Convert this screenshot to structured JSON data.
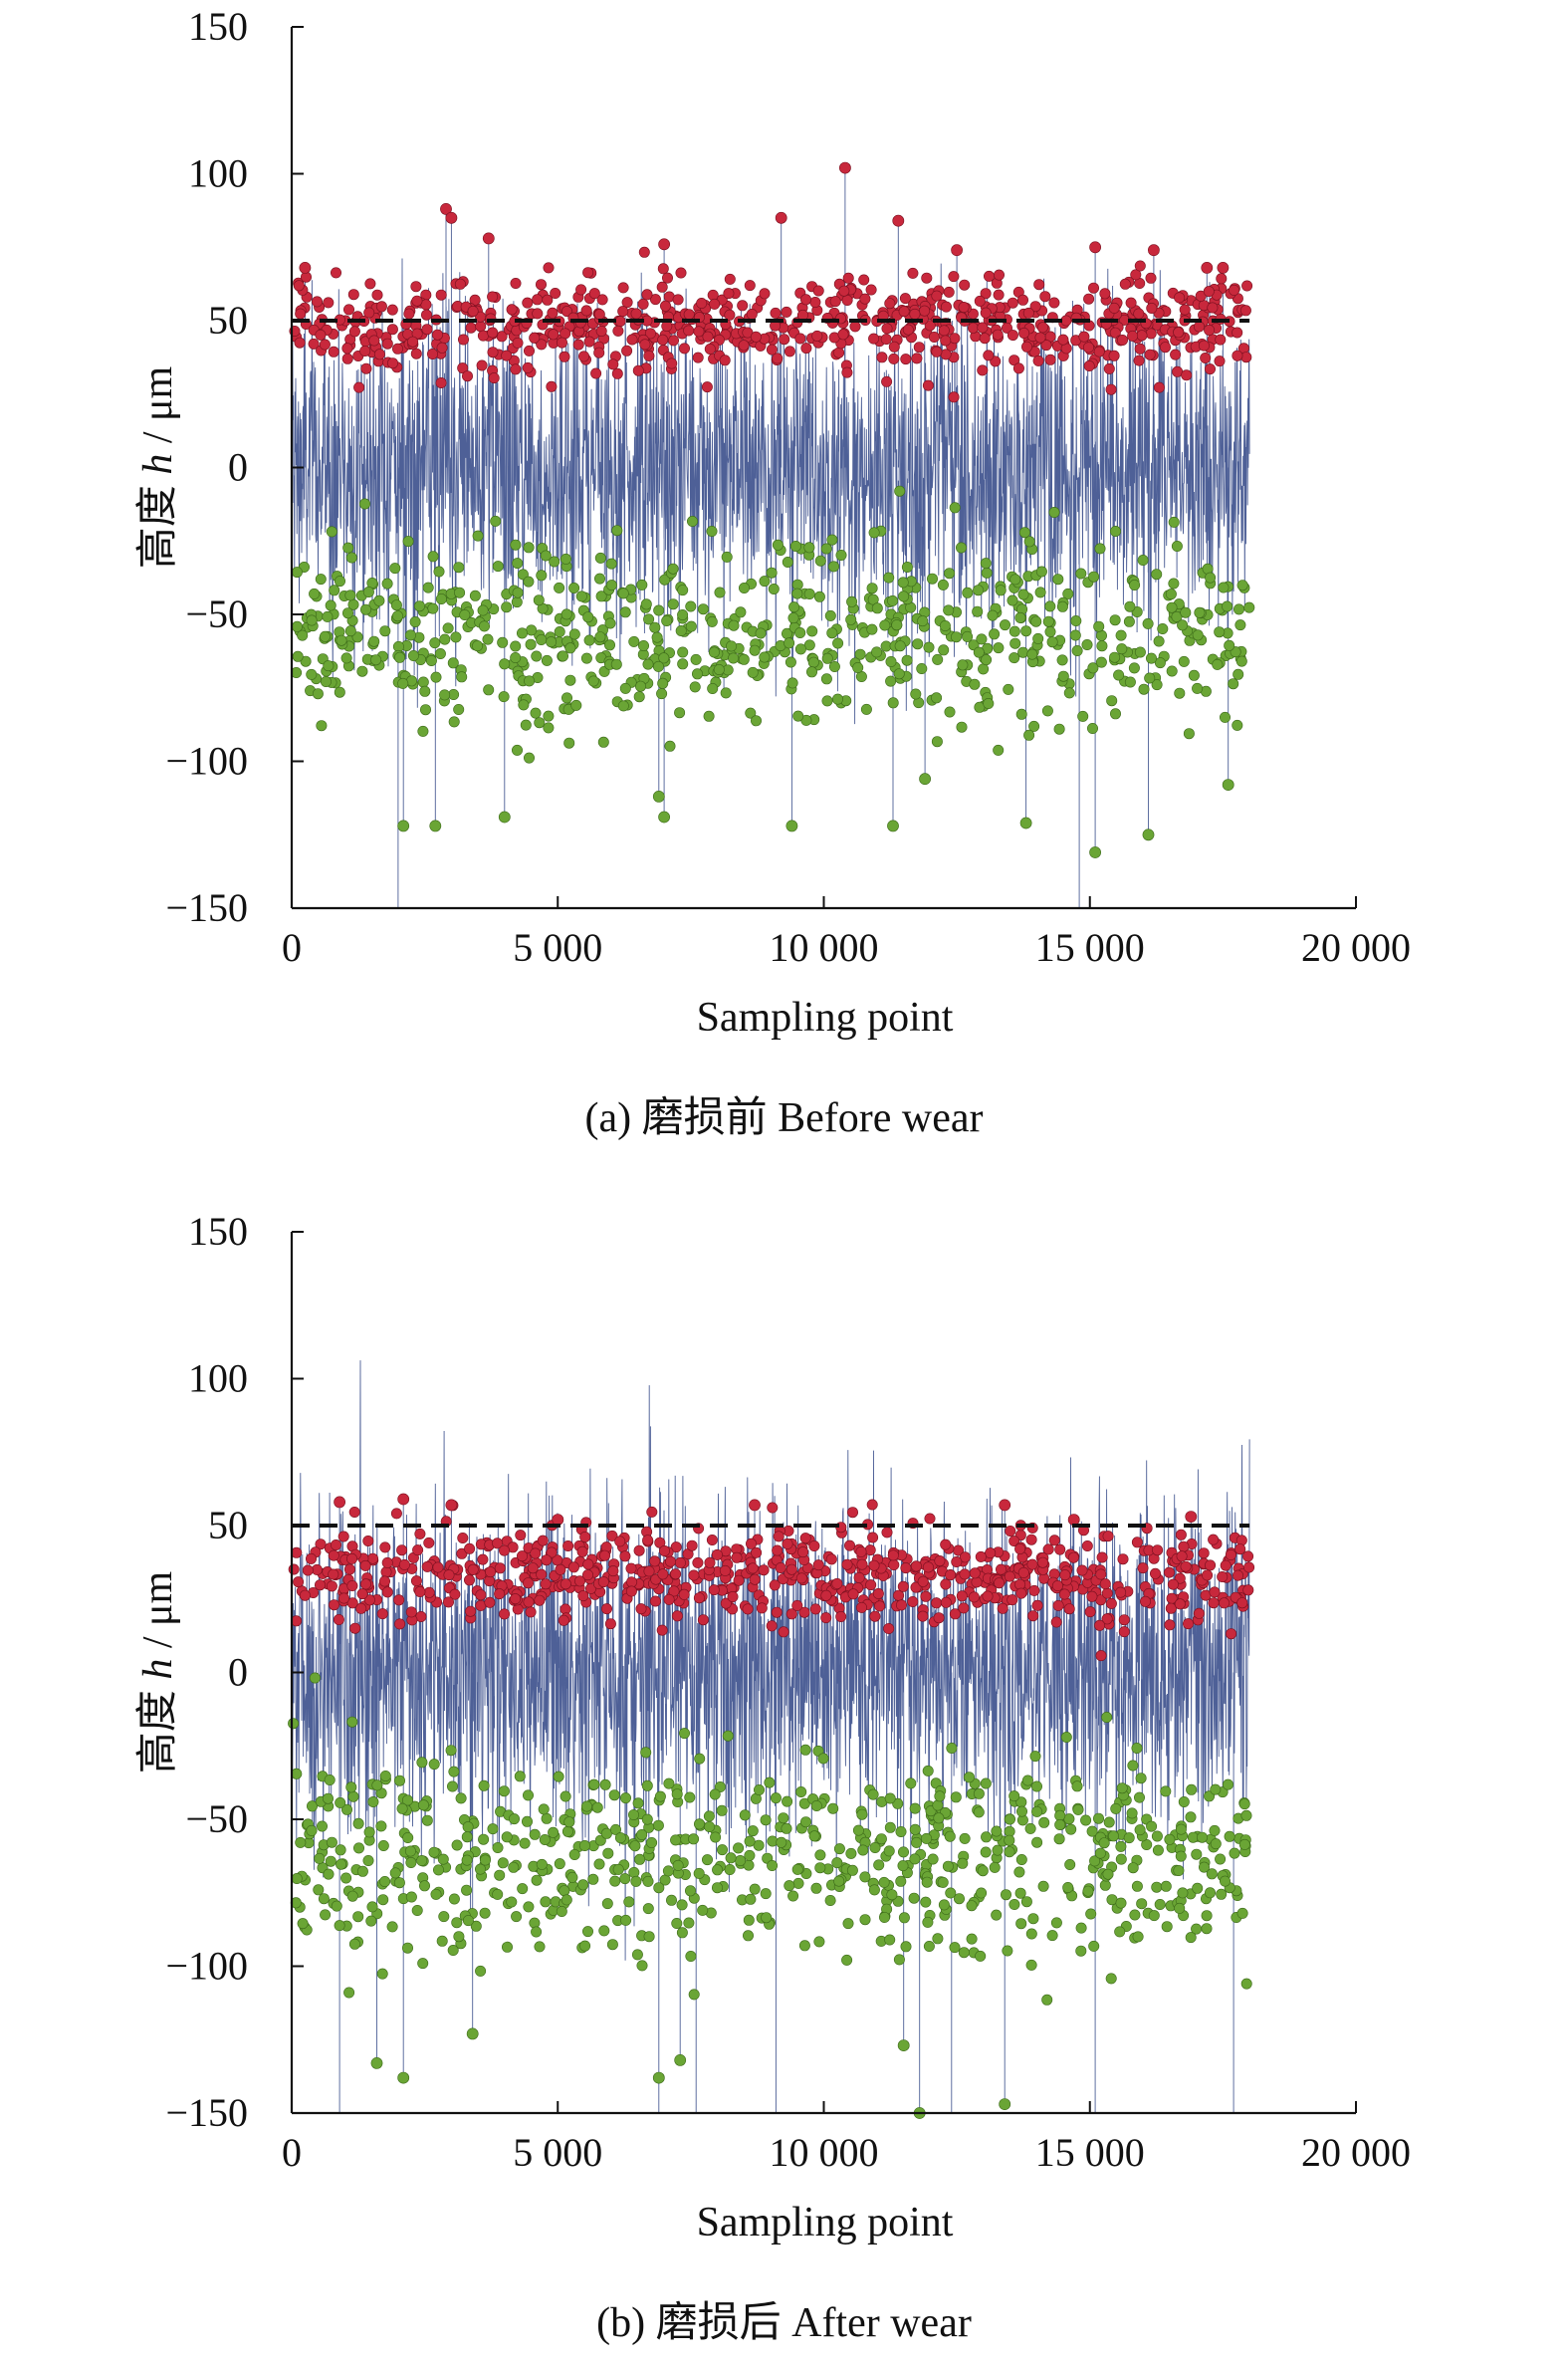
{
  "colors": {
    "line": "#3b4f8c",
    "peak": "#c8283c",
    "valley": "#6aa535",
    "threshold": "#111111",
    "axis": "#111111"
  },
  "chart_data": [
    {
      "type": "line",
      "caption": "(a) 磨损前 Before wear",
      "xlabel": "Sampling point",
      "ylabel_cn": "高度",
      "ylabel_var": "h",
      "ylabel_unit": " / μm",
      "xlim": [
        0,
        20000
      ],
      "ylim": [
        -150,
        150
      ],
      "xticks": [
        0,
        5000,
        10000,
        15000,
        20000
      ],
      "xtick_labels": [
        "0",
        "5 000",
        "10 000",
        "15 000",
        "20 000"
      ],
      "yticks": [
        -150,
        -100,
        -50,
        0,
        50,
        100,
        150
      ],
      "ytick_labels": [
        "−150",
        "−100",
        "−50",
        "0",
        "50",
        "100",
        "150"
      ],
      "threshold": 50,
      "n_points": 18000,
      "peaks": [
        [
          250,
          68
        ],
        [
          2900,
          88
        ],
        [
          3000,
          85
        ],
        [
          3700,
          78
        ],
        [
          7000,
          76
        ],
        [
          9200,
          85
        ],
        [
          10400,
          102
        ],
        [
          11400,
          84
        ],
        [
          12500,
          74
        ],
        [
          15100,
          75
        ],
        [
          16200,
          74
        ],
        [
          17200,
          68
        ],
        [
          17500,
          68
        ]
      ],
      "valleys": [
        [
          2100,
          -122
        ],
        [
          2700,
          -122
        ],
        [
          4000,
          -119
        ],
        [
          6900,
          -112
        ],
        [
          7000,
          -119
        ],
        [
          9400,
          -122
        ],
        [
          11300,
          -122
        ],
        [
          11900,
          -106
        ],
        [
          13800,
          -121
        ],
        [
          15100,
          -131
        ],
        [
          16100,
          -125
        ],
        [
          17600,
          -108
        ]
      ],
      "deep_spikes": [
        [
          2000,
          -150
        ],
        [
          14800,
          -150
        ]
      ]
    },
    {
      "type": "line",
      "caption": "(b) 磨损后 After wear",
      "xlabel": "Sampling point",
      "ylabel_cn": "高度",
      "ylabel_var": "h",
      "ylabel_unit": " / μm",
      "xlim": [
        0,
        20000
      ],
      "ylim": [
        -150,
        150
      ],
      "xticks": [
        0,
        5000,
        10000,
        15000,
        20000
      ],
      "xtick_labels": [
        "0",
        "5 000",
        "10 000",
        "15 000",
        "20 000"
      ],
      "yticks": [
        -150,
        -100,
        -50,
        0,
        50,
        100,
        150
      ],
      "ytick_labels": [
        "−150",
        "−100",
        "−50",
        "0",
        "50",
        "100",
        "150"
      ],
      "threshold": 50,
      "n_points": 18000,
      "peaks": [
        [
          900,
          58
        ],
        [
          2100,
          59
        ],
        [
          3000,
          57
        ],
        [
          5000,
          52
        ],
        [
          8700,
          57
        ],
        [
          13400,
          57
        ],
        [
          14700,
          52
        ],
        [
          16900,
          53
        ]
      ],
      "valleys": [
        [
          1600,
          -133
        ],
        [
          2100,
          -138
        ],
        [
          3400,
          -123
        ],
        [
          6900,
          -138
        ],
        [
          7300,
          -132
        ],
        [
          11500,
          -127
        ],
        [
          11800,
          -150
        ],
        [
          13400,
          -147
        ]
      ],
      "deep_spikes": [
        [
          900,
          -150
        ],
        [
          6900,
          -150
        ],
        [
          7600,
          -150
        ],
        [
          9100,
          -150
        ],
        [
          12400,
          -150
        ],
        [
          15100,
          -150
        ],
        [
          17700,
          -150
        ]
      ]
    }
  ]
}
